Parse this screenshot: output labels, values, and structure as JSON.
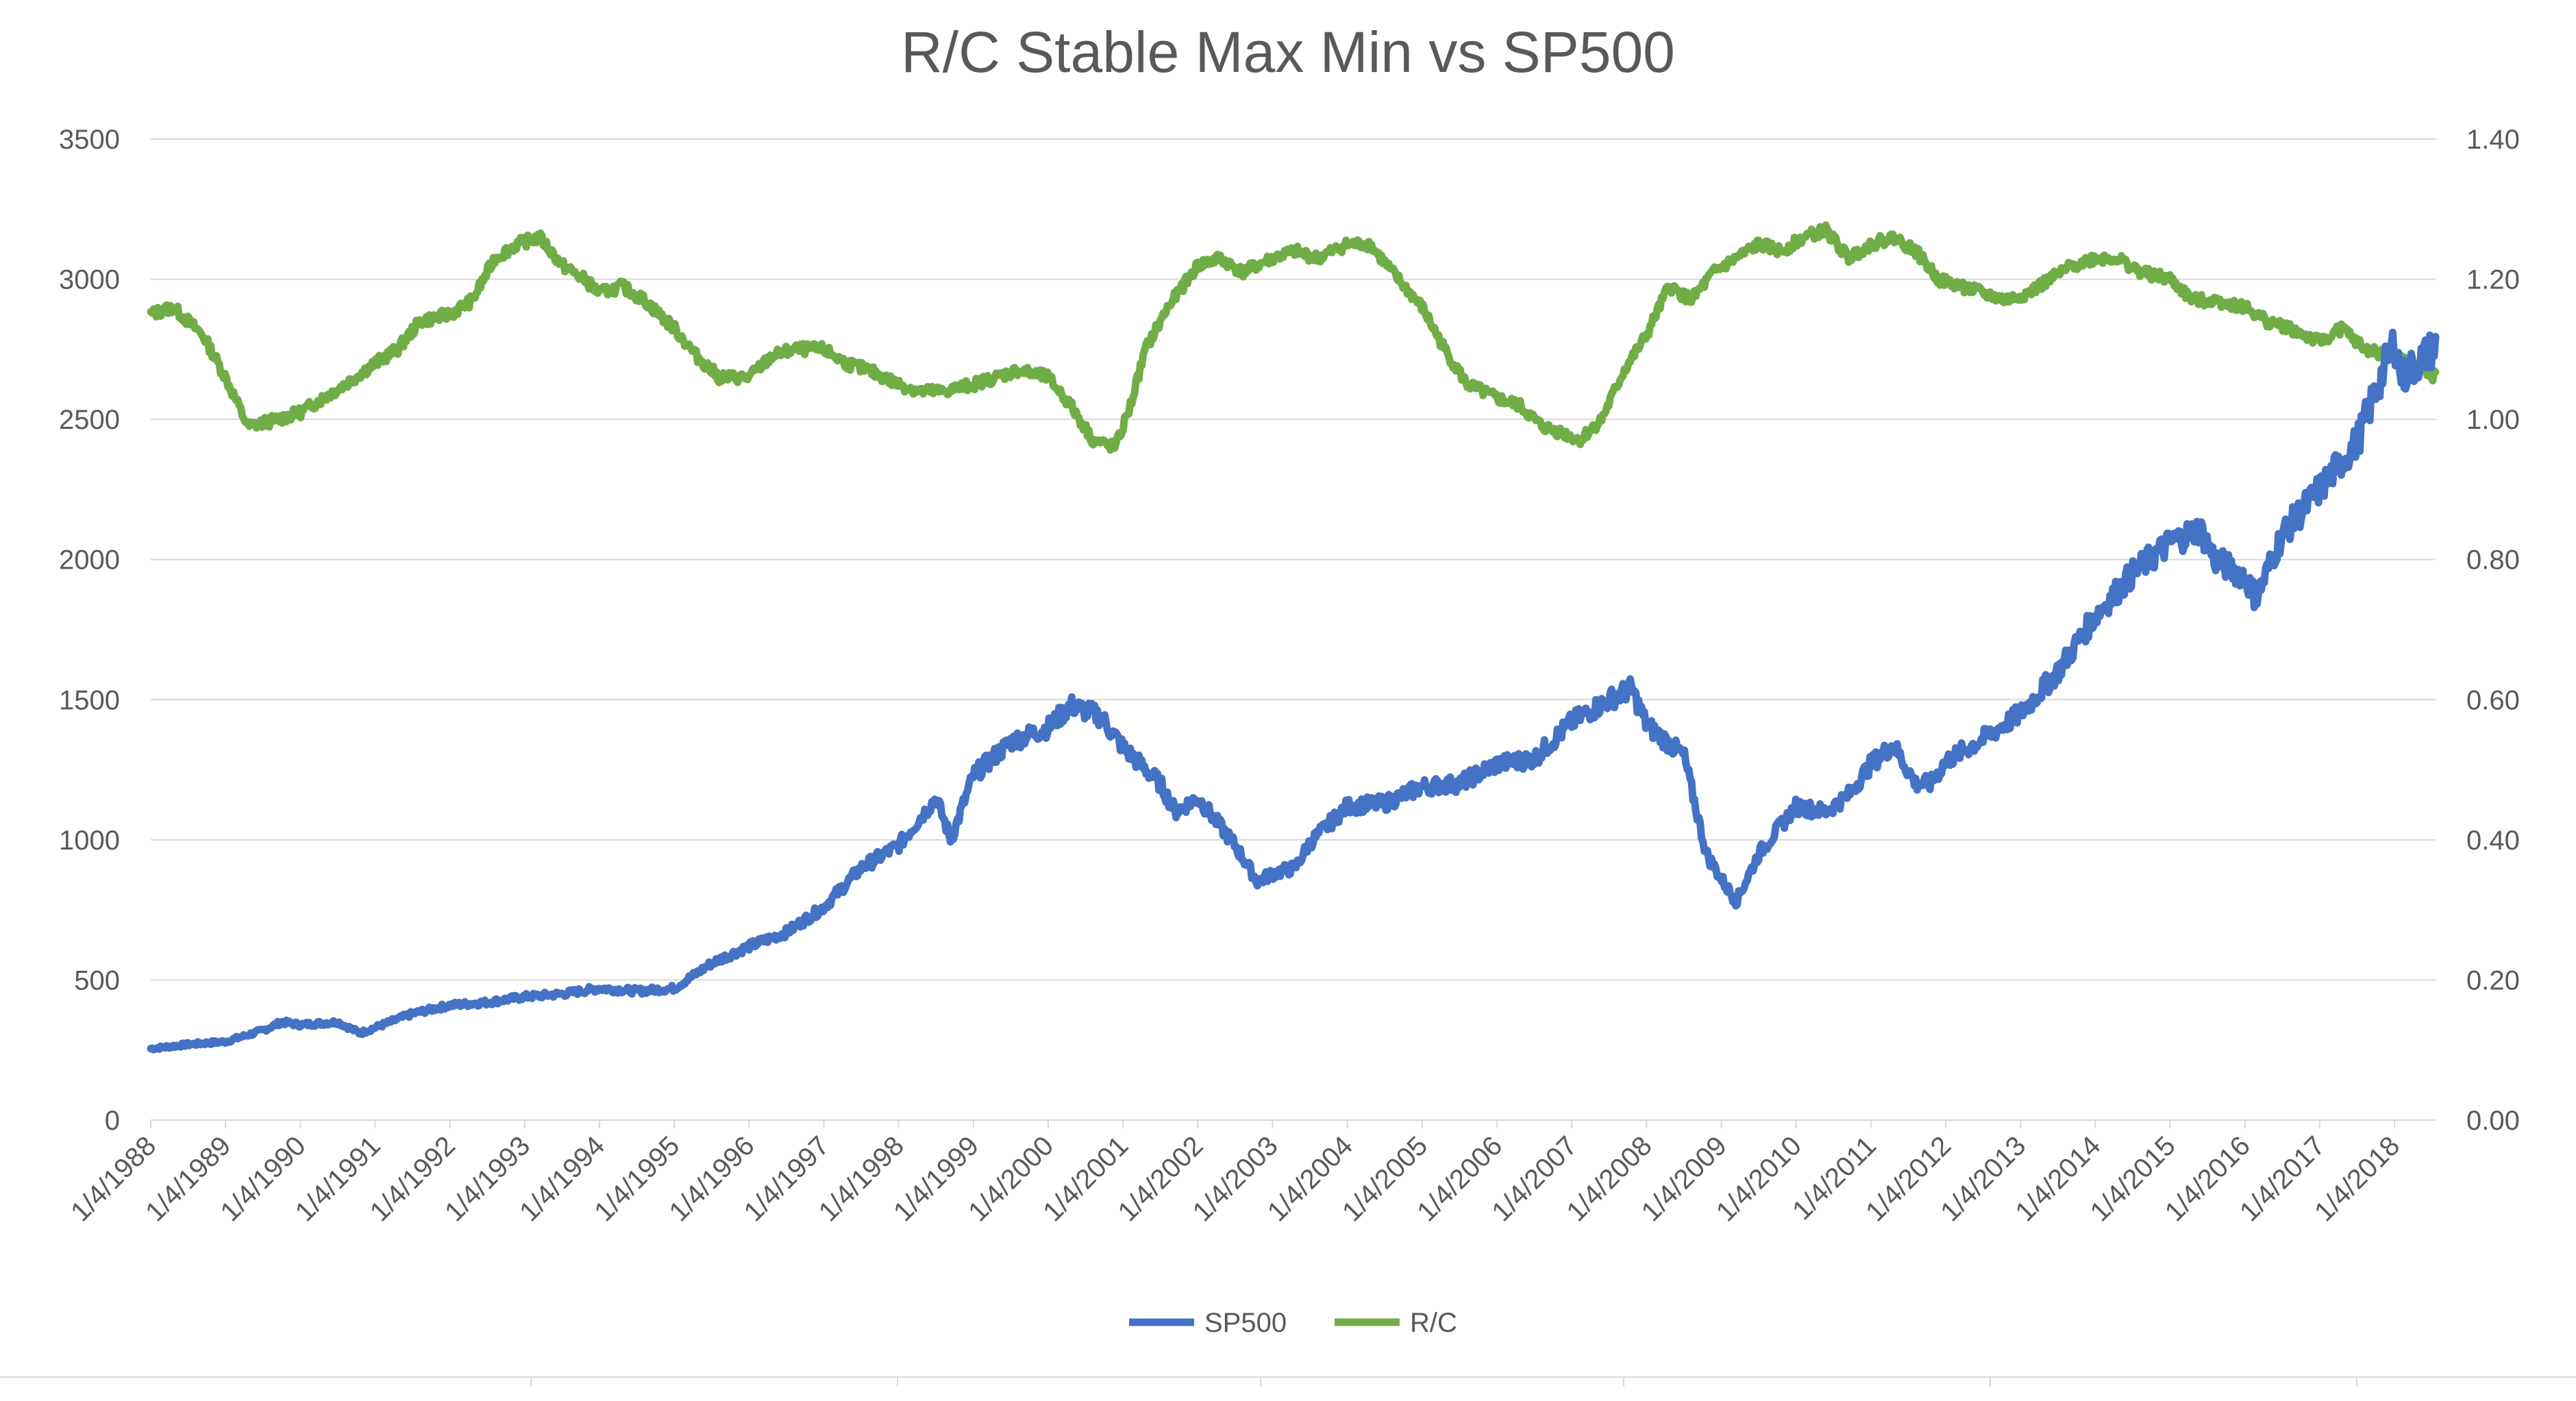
{
  "chart_data": {
    "type": "line",
    "title": "R/C Stable Max Min vs SP500",
    "xlabel": "",
    "ylabel": "",
    "x_range": [
      1988.0,
      2018.55
    ],
    "x_tick_labels": [
      "1/4/1988",
      "1/4/1989",
      "1/4/1990",
      "1/4/1991",
      "1/4/1992",
      "1/4/1993",
      "1/4/1994",
      "1/4/1995",
      "1/4/1996",
      "1/4/1997",
      "1/4/1998",
      "1/4/1999",
      "1/4/2000",
      "1/4/2001",
      "1/4/2002",
      "1/4/2003",
      "1/4/2004",
      "1/4/2005",
      "1/4/2006",
      "1/4/2007",
      "1/4/2008",
      "1/4/2009",
      "1/4/2010",
      "1/4/2011",
      "1/4/2012",
      "1/4/2013",
      "1/4/2014",
      "1/4/2015",
      "1/4/2016",
      "1/4/2017",
      "1/4/2018"
    ],
    "y_left": {
      "ylim": [
        0,
        3500
      ],
      "tick_labels": [
        "0",
        "500",
        "1000",
        "1500",
        "2000",
        "2500",
        "3000",
        "3500"
      ]
    },
    "y_right": {
      "ylim": [
        0,
        1.4
      ],
      "tick_labels": [
        "0.00",
        "0.20",
        "0.40",
        "0.60",
        "0.80",
        "1.00",
        "1.20",
        "1.40"
      ]
    },
    "grid": true,
    "legend_position": "bottom",
    "series": [
      {
        "name": "SP500",
        "axis": "left",
        "color": "#4472C4",
        "x": [
          1988.0,
          1988.5,
          1989.0,
          1989.5,
          1989.75,
          1990.0,
          1990.5,
          1990.8,
          1991.0,
          1991.5,
          1992.0,
          1992.5,
          1993.0,
          1993.5,
          1994.0,
          1994.5,
          1995.0,
          1995.5,
          1996.0,
          1996.5,
          1997.0,
          1997.5,
          1998.0,
          1998.5,
          1998.7,
          1999.0,
          1999.5,
          2000.0,
          2000.3,
          2000.7,
          2001.0,
          2001.5,
          2001.7,
          2002.0,
          2002.5,
          2002.8,
          2003.0,
          2003.3,
          2003.5,
          2004.0,
          2004.5,
          2005.0,
          2005.5,
          2006.0,
          2006.5,
          2007.0,
          2007.5,
          2007.8,
          2008.0,
          2008.5,
          2008.8,
          2009.0,
          2009.2,
          2009.5,
          2010.0,
          2010.4,
          2010.7,
          2011.0,
          2011.3,
          2011.6,
          2011.8,
          2012.0,
          2012.5,
          2013.0,
          2013.5,
          2014.0,
          2014.5,
          2015.0,
          2015.4,
          2015.6,
          2016.0,
          2016.15,
          2016.5,
          2017.0,
          2017.5,
          2018.0,
          2018.1,
          2018.3,
          2018.55
        ],
        "values": [
          255,
          270,
          280,
          320,
          350,
          340,
          350,
          310,
          330,
          380,
          410,
          420,
          440,
          450,
          470,
          460,
          470,
          560,
          620,
          670,
          760,
          900,
          980,
          1150,
          1000,
          1230,
          1350,
          1400,
          1480,
          1440,
          1330,
          1200,
          1100,
          1150,
          980,
          850,
          880,
          900,
          990,
          1120,
          1130,
          1190,
          1200,
          1270,
          1290,
          1420,
          1500,
          1540,
          1410,
          1300,
          950,
          860,
          780,
          950,
          1120,
          1100,
          1160,
          1270,
          1340,
          1200,
          1200,
          1280,
          1360,
          1450,
          1600,
          1800,
          1950,
          2060,
          2110,
          2000,
          1940,
          1860,
          2090,
          2250,
          2420,
          2780,
          2650,
          2700,
          2760
        ]
      },
      {
        "name": "R/C",
        "axis": "right",
        "color": "#70AD47",
        "x": [
          1988.0,
          1988.3,
          1988.7,
          1989.0,
          1989.3,
          1989.7,
          1990.0,
          1990.3,
          1990.6,
          1991.0,
          1991.3,
          1991.6,
          1992.0,
          1992.3,
          1992.6,
          1992.9,
          1993.2,
          1993.5,
          1993.8,
          1994.0,
          1994.3,
          1994.6,
          1995.0,
          1995.3,
          1995.6,
          1996.0,
          1996.3,
          1996.6,
          1997.0,
          1997.3,
          1997.6,
          1998.0,
          1998.3,
          1998.6,
          1999.0,
          1999.3,
          1999.6,
          2000.0,
          2000.3,
          2000.6,
          2000.9,
          2001.1,
          2001.3,
          2001.6,
          2002.0,
          2002.3,
          2002.6,
          2003.0,
          2003.3,
          2003.6,
          2004.0,
          2004.3,
          2004.6,
          2005.0,
          2005.3,
          2005.6,
          2006.0,
          2006.3,
          2006.6,
          2006.9,
          2007.1,
          2007.4,
          2007.7,
          2008.0,
          2008.3,
          2008.6,
          2008.9,
          2009.2,
          2009.5,
          2009.8,
          2010.1,
          2010.4,
          2010.7,
          2011.0,
          2011.3,
          2011.6,
          2011.9,
          2012.2,
          2012.5,
          2012.8,
          2013.1,
          2013.4,
          2013.7,
          2014.0,
          2014.3,
          2014.6,
          2015.0,
          2015.3,
          2015.6,
          2016.0,
          2016.3,
          2016.6,
          2017.0,
          2017.3,
          2017.6,
          2018.0,
          2018.2,
          2018.4,
          2018.55
        ],
        "values": [
          1.15,
          1.16,
          1.12,
          1.06,
          0.99,
          1.0,
          1.01,
          1.03,
          1.05,
          1.08,
          1.1,
          1.14,
          1.15,
          1.17,
          1.23,
          1.25,
          1.26,
          1.22,
          1.2,
          1.18,
          1.19,
          1.17,
          1.13,
          1.09,
          1.06,
          1.06,
          1.09,
          1.1,
          1.1,
          1.08,
          1.07,
          1.05,
          1.04,
          1.04,
          1.05,
          1.06,
          1.07,
          1.06,
          1.02,
          0.97,
          0.96,
          1.02,
          1.1,
          1.16,
          1.22,
          1.23,
          1.21,
          1.23,
          1.24,
          1.23,
          1.25,
          1.25,
          1.21,
          1.16,
          1.1,
          1.05,
          1.03,
          1.02,
          0.99,
          0.98,
          0.97,
          1.0,
          1.07,
          1.12,
          1.19,
          1.17,
          1.21,
          1.23,
          1.25,
          1.24,
          1.26,
          1.27,
          1.23,
          1.25,
          1.26,
          1.24,
          1.2,
          1.19,
          1.18,
          1.17,
          1.18,
          1.2,
          1.22,
          1.23,
          1.23,
          1.21,
          1.2,
          1.17,
          1.17,
          1.16,
          1.14,
          1.13,
          1.11,
          1.13,
          1.1,
          1.09,
          1.08,
          1.07,
          1.06
        ]
      }
    ]
  }
}
